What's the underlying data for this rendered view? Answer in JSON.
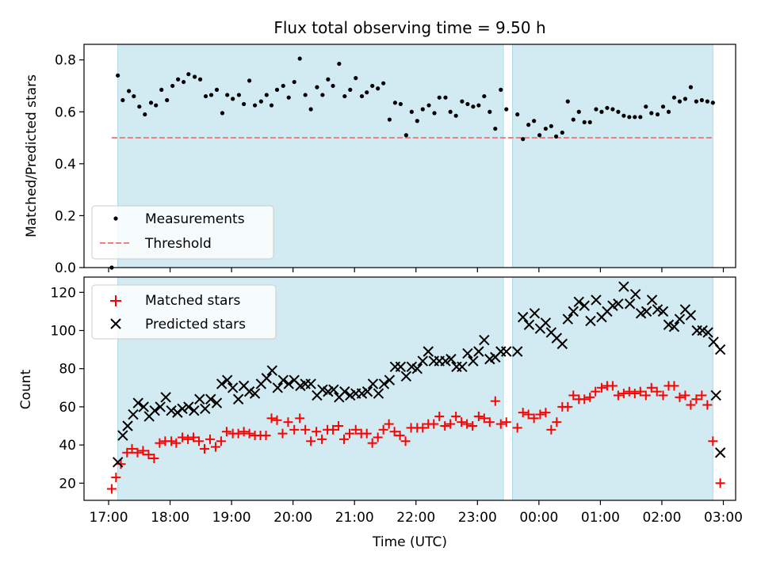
{
  "chart_data": [
    {
      "type": "scatter",
      "title": "Flux total observing time = 9.50 h",
      "ylabel": "Matched/Predicted stars",
      "xlabel": "",
      "xlim": [
        16.6,
        27.2
      ],
      "ylim": [
        0,
        0.86
      ],
      "yticks": [
        "0.0",
        "0.2",
        "0.4",
        "0.6",
        "0.8"
      ],
      "ytick_values": [
        0,
        0.2,
        0.4,
        0.6,
        0.8
      ],
      "xtick_values": [
        17,
        18,
        19,
        20,
        21,
        22,
        23,
        24,
        25,
        26,
        27
      ],
      "shaded_intervals": [
        [
          17.15,
          23.42
        ],
        [
          23.57,
          26.83
        ]
      ],
      "shade_color": "#add8e6",
      "threshold": 0.5,
      "threshold_color": "#f08080",
      "legend_position": "lower-left",
      "series": [
        {
          "name": "Measurements",
          "marker": "dot",
          "color": "#000000",
          "x": [
            17.05,
            17.15,
            17.23,
            17.33,
            17.41,
            17.5,
            17.59,
            17.69,
            17.77,
            17.86,
            17.95,
            18.04,
            18.13,
            18.22,
            18.3,
            18.4,
            18.49,
            18.58,
            18.67,
            18.76,
            18.85,
            18.93,
            19.02,
            19.12,
            19.2,
            19.29,
            19.38,
            19.48,
            19.57,
            19.65,
            19.74,
            19.84,
            19.93,
            20.02,
            20.11,
            20.2,
            20.29,
            20.39,
            20.48,
            20.57,
            20.65,
            20.75,
            20.84,
            20.93,
            21.02,
            21.12,
            21.2,
            21.29,
            21.38,
            21.47,
            21.57,
            21.66,
            21.75,
            21.84,
            21.93,
            22.02,
            22.11,
            22.21,
            22.3,
            22.38,
            22.48,
            22.56,
            22.65,
            22.75,
            22.84,
            22.93,
            23.02,
            23.11,
            23.2,
            23.29,
            23.38,
            23.47,
            23.65,
            23.74,
            23.83,
            23.92,
            24.01,
            24.11,
            24.2,
            24.28,
            24.38,
            24.47,
            24.56,
            24.65,
            24.74,
            24.83,
            24.93,
            25.02,
            25.11,
            25.2,
            25.29,
            25.38,
            25.47,
            25.56,
            25.65,
            25.74,
            25.83,
            25.93,
            26.02,
            26.11,
            26.2,
            26.29,
            26.38,
            26.47,
            26.56,
            26.65,
            26.74,
            26.83
          ],
          "y": [
            0.0,
            0.74,
            0.645,
            0.68,
            0.66,
            0.62,
            0.59,
            0.635,
            0.625,
            0.685,
            0.645,
            0.7,
            0.725,
            0.715,
            0.745,
            0.735,
            0.725,
            0.66,
            0.665,
            0.685,
            0.595,
            0.665,
            0.65,
            0.665,
            0.63,
            0.72,
            0.625,
            0.64,
            0.665,
            0.625,
            0.685,
            0.7,
            0.655,
            0.715,
            0.805,
            0.665,
            0.61,
            0.695,
            0.665,
            0.725,
            0.7,
            0.785,
            0.66,
            0.685,
            0.73,
            0.66,
            0.675,
            0.7,
            0.69,
            0.71,
            0.57,
            0.635,
            0.63,
            0.51,
            0.6,
            0.565,
            0.61,
            0.625,
            0.595,
            0.655,
            0.655,
            0.6,
            0.585,
            0.64,
            0.63,
            0.62,
            0.625,
            0.66,
            0.6,
            0.535,
            0.685,
            0.61,
            0.59,
            0.495,
            0.55,
            0.565,
            0.51,
            0.535,
            0.545,
            0.505,
            0.52,
            0.64,
            0.57,
            0.6,
            0.56,
            0.56,
            0.61,
            0.6,
            0.615,
            0.61,
            0.6,
            0.585,
            0.58,
            0.58,
            0.58,
            0.62,
            0.595,
            0.59,
            0.62,
            0.6,
            0.655,
            0.64,
            0.65,
            0.695,
            0.64,
            0.645,
            0.64,
            0.635
          ]
        },
        {
          "name": "Threshold",
          "marker": "dashed-line",
          "color": "#f08080",
          "x": [
            17.05,
            26.83
          ],
          "y": [
            0.5,
            0.5
          ]
        }
      ]
    },
    {
      "type": "scatter",
      "title": "",
      "ylabel": "Count",
      "xlabel": "Time (UTC)",
      "xlim": [
        16.6,
        27.2
      ],
      "ylim": [
        11,
        128
      ],
      "yticks": [
        "20",
        "40",
        "60",
        "80",
        "100",
        "120"
      ],
      "ytick_values": [
        20,
        40,
        60,
        80,
        100,
        120
      ],
      "xticks": [
        "17:00",
        "18:00",
        "19:00",
        "20:00",
        "21:00",
        "22:00",
        "23:00",
        "00:00",
        "01:00",
        "02:00",
        "03:00"
      ],
      "xtick_values": [
        17,
        18,
        19,
        20,
        21,
        22,
        23,
        24,
        25,
        26,
        27
      ],
      "legend_position": "upper-left",
      "series": [
        {
          "name": "Matched stars",
          "marker": "plus",
          "color": "#ff0000",
          "x": [
            17.05,
            17.12,
            17.2,
            17.3,
            17.38,
            17.47,
            17.56,
            17.65,
            17.74,
            17.83,
            17.92,
            18.02,
            18.1,
            18.2,
            18.29,
            18.38,
            18.47,
            18.56,
            18.65,
            18.74,
            18.83,
            18.92,
            19.02,
            19.11,
            19.2,
            19.29,
            19.38,
            19.47,
            19.56,
            19.65,
            19.74,
            19.83,
            19.92,
            20.02,
            20.11,
            20.2,
            20.29,
            20.38,
            20.47,
            20.56,
            20.65,
            20.74,
            20.83,
            20.92,
            21.02,
            21.11,
            21.2,
            21.29,
            21.38,
            21.47,
            21.56,
            21.65,
            21.74,
            21.83,
            21.92,
            22.02,
            22.11,
            22.2,
            22.29,
            22.38,
            22.47,
            22.56,
            22.65,
            22.74,
            22.83,
            22.92,
            23.02,
            23.11,
            23.2,
            23.29,
            23.38,
            23.47,
            23.65,
            23.74,
            23.83,
            23.92,
            24.02,
            24.11,
            24.2,
            24.29,
            24.38,
            24.47,
            24.56,
            24.65,
            24.74,
            24.83,
            24.92,
            25.02,
            25.11,
            25.2,
            25.29,
            25.38,
            25.47,
            25.56,
            25.65,
            25.74,
            25.83,
            25.92,
            26.02,
            26.11,
            26.2,
            26.29,
            26.38,
            26.47,
            26.56,
            26.65,
            26.74,
            26.83
          ],
          "y": [
            17,
            23,
            30,
            36,
            38,
            36,
            37,
            35,
            33,
            41,
            42,
            42,
            41,
            44,
            43,
            44,
            42,
            38,
            43,
            39,
            42,
            47,
            46,
            46,
            47,
            46,
            45,
            45,
            45,
            54,
            53,
            46,
            52,
            48,
            54,
            48,
            42,
            47,
            43,
            48,
            48,
            50,
            43,
            46,
            48,
            46,
            46,
            41,
            44,
            48,
            51,
            47,
            45,
            42,
            49,
            49,
            49,
            51,
            51,
            55,
            50,
            51,
            55,
            52,
            51,
            50,
            55,
            54,
            52,
            63,
            51,
            52,
            49,
            57,
            56,
            54,
            56,
            57,
            48,
            52,
            60,
            60,
            66,
            64,
            64,
            65,
            68,
            70,
            71,
            71,
            66,
            67,
            68,
            67,
            68,
            66,
            70,
            68,
            66,
            71,
            71,
            65,
            66,
            61,
            64,
            66,
            61,
            42
          ],
          "extra_points": [
            [
              26.95,
              20
            ]
          ]
        },
        {
          "name": "Predicted stars",
          "marker": "x",
          "color": "#000000",
          "x": [
            17.15,
            17.23,
            17.31,
            17.4,
            17.48,
            17.57,
            17.66,
            17.75,
            17.84,
            17.93,
            18.02,
            18.12,
            18.2,
            18.3,
            18.39,
            18.48,
            18.57,
            18.66,
            18.76,
            18.84,
            18.93,
            19.02,
            19.11,
            19.2,
            19.29,
            19.38,
            19.48,
            19.57,
            19.66,
            19.75,
            19.84,
            19.93,
            20.02,
            20.12,
            20.2,
            20.29,
            20.39,
            20.48,
            20.57,
            20.66,
            20.75,
            20.84,
            20.93,
            21.02,
            21.12,
            21.21,
            21.3,
            21.39,
            21.48,
            21.57,
            21.66,
            21.75,
            21.84,
            21.93,
            22.02,
            22.11,
            22.2,
            22.29,
            22.38,
            22.48,
            22.57,
            22.66,
            22.75,
            22.84,
            22.93,
            23.02,
            23.11,
            23.2,
            23.29,
            23.38,
            23.47,
            23.65,
            23.74,
            23.84,
            23.93,
            24.02,
            24.11,
            24.2,
            24.29,
            24.38,
            24.47,
            24.56,
            24.65,
            24.74,
            24.84,
            24.93,
            25.02,
            25.11,
            25.2,
            25.29,
            25.38,
            25.48,
            25.57,
            25.66,
            25.75,
            25.84,
            25.93,
            26.02,
            26.11,
            26.2,
            26.29,
            26.38,
            26.47,
            26.57,
            26.66,
            26.75,
            26.84,
            26.95
          ],
          "y": [
            31,
            45,
            50,
            56,
            62,
            60,
            55,
            58,
            60,
            65,
            58,
            57,
            59,
            60,
            58,
            64,
            59,
            64,
            62,
            72,
            74,
            70,
            64,
            71,
            68,
            67,
            72,
            75,
            79,
            70,
            74,
            72,
            74,
            71,
            72,
            72,
            66,
            69,
            68,
            69,
            65,
            68,
            66,
            67,
            67,
            68,
            72,
            67,
            72,
            74,
            81,
            81,
            76,
            81,
            80,
            84,
            89,
            84,
            84,
            84,
            85,
            81,
            81,
            88,
            84,
            89,
            95,
            85,
            86,
            89,
            89,
            89,
            107,
            103,
            109,
            101,
            104,
            99,
            96,
            93,
            106,
            110,
            115,
            113,
            105,
            116,
            107,
            110,
            113,
            114,
            123,
            114,
            119,
            109,
            110,
            116,
            111,
            110,
            103,
            102,
            106,
            111,
            108,
            100,
            100,
            99,
            94,
            90
          ],
          "extra_points": [
            [
              26.88,
              66
            ],
            [
              26.95,
              36
            ]
          ]
        }
      ]
    }
  ]
}
